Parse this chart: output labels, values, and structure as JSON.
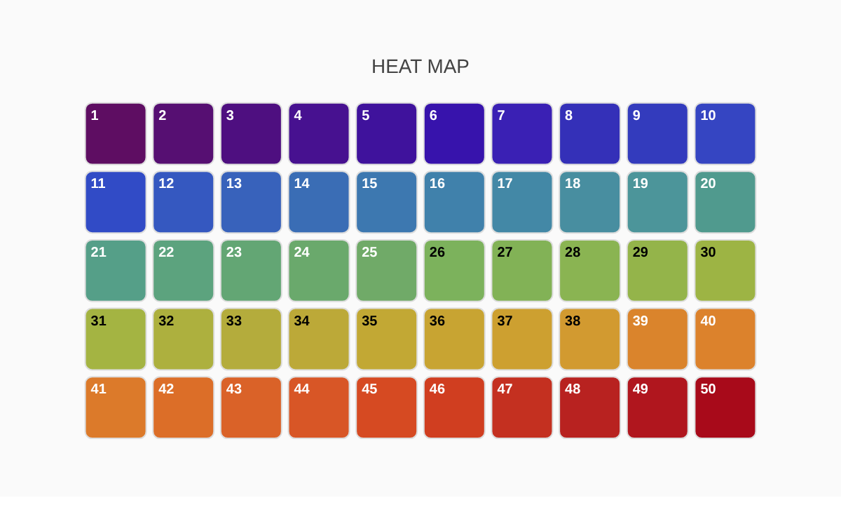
{
  "chart_data": {
    "type": "heatmap",
    "title": "HEAT MAP",
    "categories": [
      null,
      null,
      null,
      null,
      null,
      null,
      null,
      null,
      null,
      null
    ],
    "y_categories": [
      null,
      null,
      null,
      null,
      null
    ],
    "cells": [
      [
        1,
        2,
        3,
        4,
        5,
        6,
        7,
        8,
        9,
        10
      ],
      [
        11,
        12,
        13,
        14,
        15,
        16,
        17,
        18,
        19,
        20
      ],
      [
        21,
        22,
        23,
        24,
        25,
        26,
        27,
        28,
        29,
        30
      ],
      [
        31,
        32,
        33,
        34,
        35,
        36,
        37,
        38,
        39,
        40
      ],
      [
        41,
        42,
        43,
        44,
        45,
        46,
        47,
        48,
        49,
        50
      ]
    ],
    "colors": [
      "#5e0d62",
      "#560f72",
      "#4e0f80",
      "#471190",
      "#3f129c",
      "#3713ac",
      "#3a20b4",
      "#3430b8",
      "#333bbd",
      "#3545c2",
      "#314bc6",
      "#3558c0",
      "#3862bb",
      "#3a6db5",
      "#3d78b0",
      "#4081ab",
      "#4388a6",
      "#488ea0",
      "#4c959a",
      "#509a8e",
      "#559f88",
      "#5ca37e",
      "#63a674",
      "#6aa96c",
      "#70aa68",
      "#7cb25c",
      "#82b256",
      "#8ab452",
      "#94b44a",
      "#9db444",
      "#a4b442",
      "#adb03e",
      "#b4ac3c",
      "#bca938",
      "#c2a834",
      "#c8a432",
      "#cda030",
      "#d29a30",
      "#da842c",
      "#dc822c",
      "#dc7a2a",
      "#dc6e28",
      "#da6228",
      "#d85626",
      "#d64a22",
      "#d03e20",
      "#c43020",
      "#b82220",
      "#b0161e",
      "#a80a1a"
    ],
    "data_labels": true
  }
}
